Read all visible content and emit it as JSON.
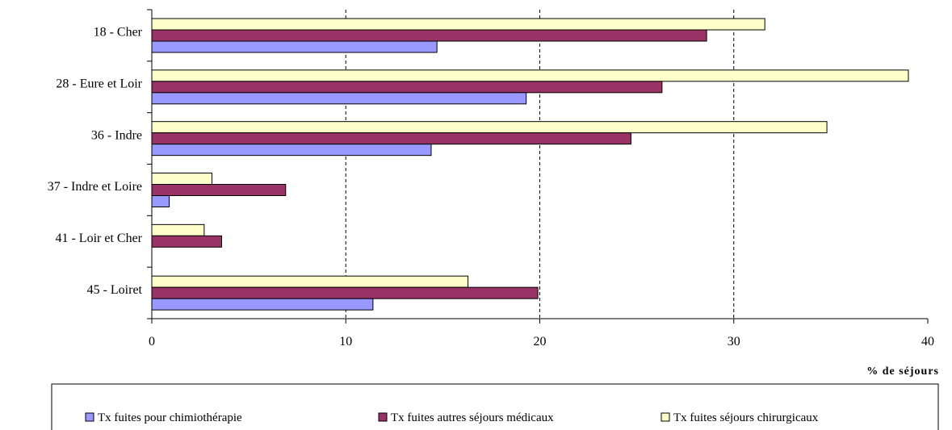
{
  "chart_data": {
    "type": "bar",
    "orientation": "horizontal",
    "categories": [
      "18 - Cher",
      "28 - Eure et Loir",
      "36 - Indre",
      "37 - Indre et Loire",
      "41 - Loir et Cher",
      "45 - Loiret"
    ],
    "series": [
      {
        "name": "Tx fuites pour chimiothérapie",
        "color": "#9999ff",
        "values": [
          14.7,
          19.3,
          14.4,
          0.9,
          0.0,
          11.4
        ]
      },
      {
        "name": "Tx fuites autres séjours médicaux",
        "color": "#993366",
        "values": [
          28.6,
          26.3,
          24.7,
          6.9,
          3.6,
          19.9
        ]
      },
      {
        "name": "Tx fuites séjours chirurgicaux",
        "color": "#ffffcc",
        "values": [
          31.6,
          39.0,
          34.8,
          3.1,
          2.7,
          16.3
        ]
      }
    ],
    "xlabel": "% de séjours",
    "xlim": [
      0,
      40
    ],
    "xticks": [
      0,
      10,
      20,
      30,
      40
    ],
    "grid": "vertical dashed",
    "legend": "bottom"
  }
}
